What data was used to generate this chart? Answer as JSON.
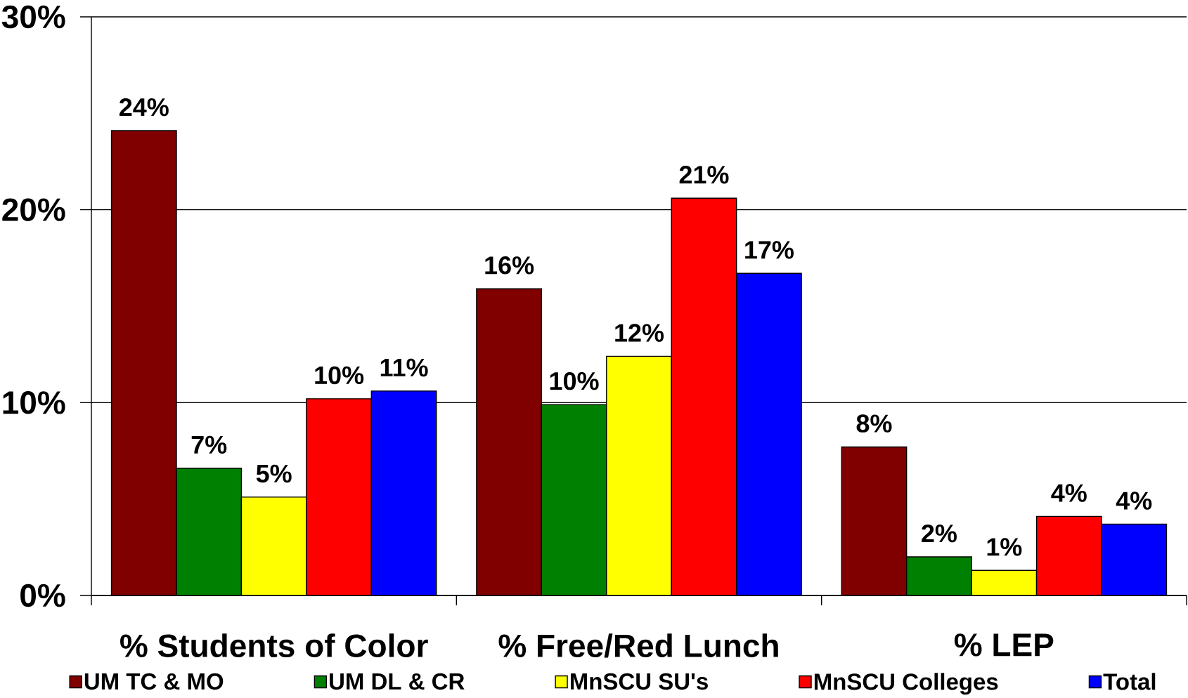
{
  "chart_data": {
    "type": "bar",
    "categories": [
      "% Students of Color",
      "% Free/Red Lunch",
      "% LEP"
    ],
    "series": [
      {
        "name": "UM TC & MO",
        "color": "#800000",
        "values": [
          24.1,
          15.9,
          7.7
        ],
        "value_labels": [
          "24%",
          "16%",
          "8%"
        ]
      },
      {
        "name": "UM DL & CR",
        "color": "#008000",
        "values": [
          6.6,
          9.9,
          2.0
        ],
        "value_labels": [
          "7%",
          "10%",
          "2%"
        ]
      },
      {
        "name": "MnSCU SU's",
        "color": "#ffff00",
        "values": [
          5.1,
          12.4,
          1.3
        ],
        "value_labels": [
          "5%",
          "12%",
          "1%"
        ]
      },
      {
        "name": "MnSCU Colleges",
        "color": "#ff0000",
        "values": [
          10.2,
          20.6,
          4.1
        ],
        "value_labels": [
          "10%",
          "21%",
          "4%"
        ]
      },
      {
        "name": "Total",
        "color": "#0000ff",
        "values": [
          10.6,
          16.7,
          3.7
        ],
        "value_labels": [
          "11%",
          "17%",
          "4%"
        ]
      }
    ],
    "ylim": [
      0,
      30
    ],
    "yticks": [
      {
        "value": 0,
        "label": "0%"
      },
      {
        "value": 10,
        "label": "10%"
      },
      {
        "value": 20,
        "label": "20%"
      },
      {
        "value": 30,
        "label": "30%"
      }
    ],
    "grid": "y",
    "legend": "bottom"
  }
}
